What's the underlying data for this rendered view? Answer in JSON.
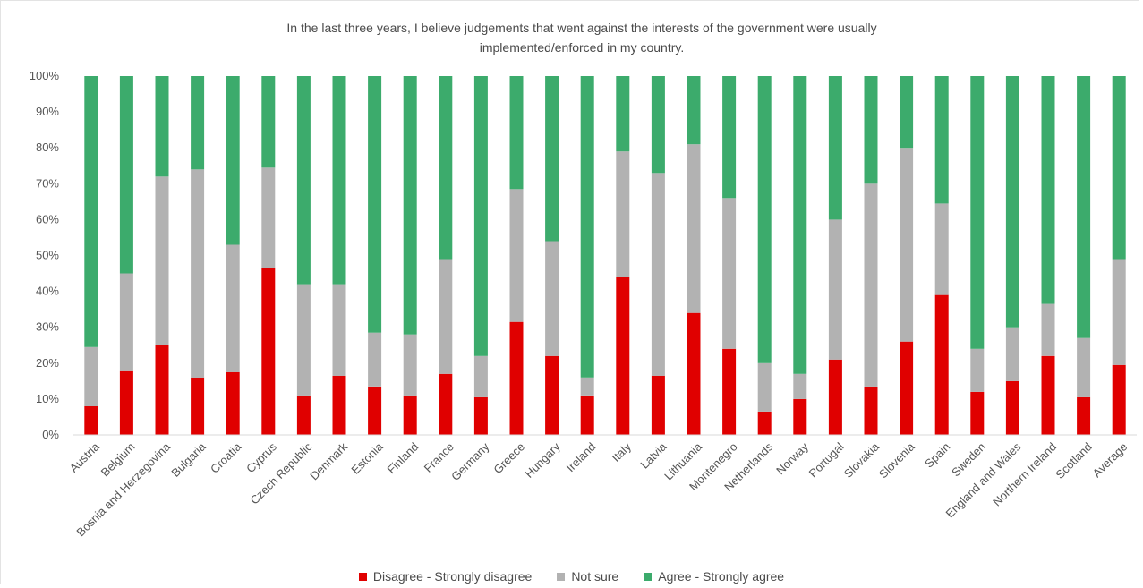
{
  "chart_data": {
    "type": "bar",
    "stacked": true,
    "title_lines": [
      "In the last three years, I believe judgements that went against the interests of the government  were usually",
      "implemented/enforced  in my country."
    ],
    "ylim": [
      0,
      100
    ],
    "y_ticks": [
      "0%",
      "10%",
      "20%",
      "30%",
      "40%",
      "50%",
      "60%",
      "70%",
      "80%",
      "90%",
      "100%"
    ],
    "grid": false,
    "legend_position": "bottom",
    "categories": [
      "Austria",
      "Belgium",
      "Bosnia and Herzegovina",
      "Bulgaria",
      "Croatia",
      "Cyprus",
      "Czech Republic",
      "Denmark",
      "Estonia",
      "Finland",
      "France",
      "Germany",
      "Greece",
      "Hungary",
      "Ireland",
      "Italy",
      "Latvia",
      "Lithuania",
      "Montenegro",
      "Netherlands",
      "Norway",
      "Portugal",
      "Slovakia",
      "Slovenia",
      "Spain",
      "Sweden",
      "England and Wales",
      "Northern Ireland",
      "Scotland",
      "Average"
    ],
    "series": [
      {
        "name": "Disagree - Strongly disagree",
        "color": "#e00000",
        "values": [
          8,
          18,
          25,
          16,
          17.5,
          46.5,
          11,
          16.5,
          13.5,
          11,
          17,
          10.5,
          31.5,
          22,
          11,
          44,
          16.5,
          34,
          24,
          6.5,
          10,
          21,
          13.5,
          26,
          39,
          12,
          15,
          22,
          10.5,
          19.5
        ]
      },
      {
        "name": "Not sure",
        "color": "#b2b2b2",
        "values": [
          16.5,
          27,
          47,
          58,
          35.5,
          28,
          31,
          25.5,
          15,
          17,
          32,
          11.5,
          37,
          32,
          5,
          35,
          56.5,
          47,
          42,
          13.5,
          7,
          39,
          56.5,
          54,
          25.5,
          12,
          15,
          14.5,
          16.5,
          29.5
        ]
      },
      {
        "name": "Agree - Strongly agree",
        "color": "#3cab6c",
        "values": [
          75.5,
          55,
          28,
          26,
          47,
          25.5,
          58,
          58,
          71.5,
          72,
          51,
          78,
          31.5,
          46,
          84,
          21,
          27,
          19,
          34,
          80,
          83,
          40,
          30,
          20,
          35.5,
          76,
          70,
          63.5,
          73,
          51
        ]
      }
    ]
  }
}
